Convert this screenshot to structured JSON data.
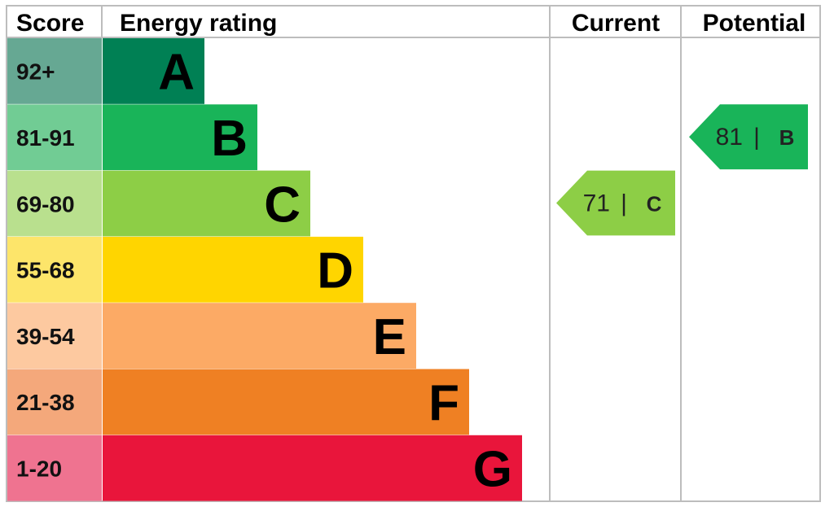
{
  "chart_data": {
    "type": "table",
    "headers": {
      "score": "Score",
      "rating": "Energy rating",
      "current": "Current",
      "potential": "Potential"
    },
    "bands": [
      {
        "letter": "A",
        "range": "92+",
        "color": "#008054",
        "score_bg": "#66a893"
      },
      {
        "letter": "B",
        "range": "81-91",
        "color": "#19b459",
        "score_bg": "#71cc94"
      },
      {
        "letter": "C",
        "range": "69-80",
        "color": "#8dce46",
        "score_bg": "#b9e08e"
      },
      {
        "letter": "D",
        "range": "55-68",
        "color": "#ffd500",
        "score_bg": "#fde56a"
      },
      {
        "letter": "E",
        "range": "39-54",
        "color": "#fcaa65",
        "score_bg": "#fdc9a0"
      },
      {
        "letter": "F",
        "range": "21-38",
        "color": "#ef8023",
        "score_bg": "#f4a87b"
      },
      {
        "letter": "G",
        "range": "1-20",
        "color": "#e9153b",
        "score_bg": "#ef7390"
      }
    ],
    "current": {
      "value": 71,
      "letter": "C",
      "separator": "|",
      "color": "#8dce46"
    },
    "potential": {
      "value": 81,
      "letter": "B",
      "separator": "|",
      "color": "#19b459"
    }
  }
}
